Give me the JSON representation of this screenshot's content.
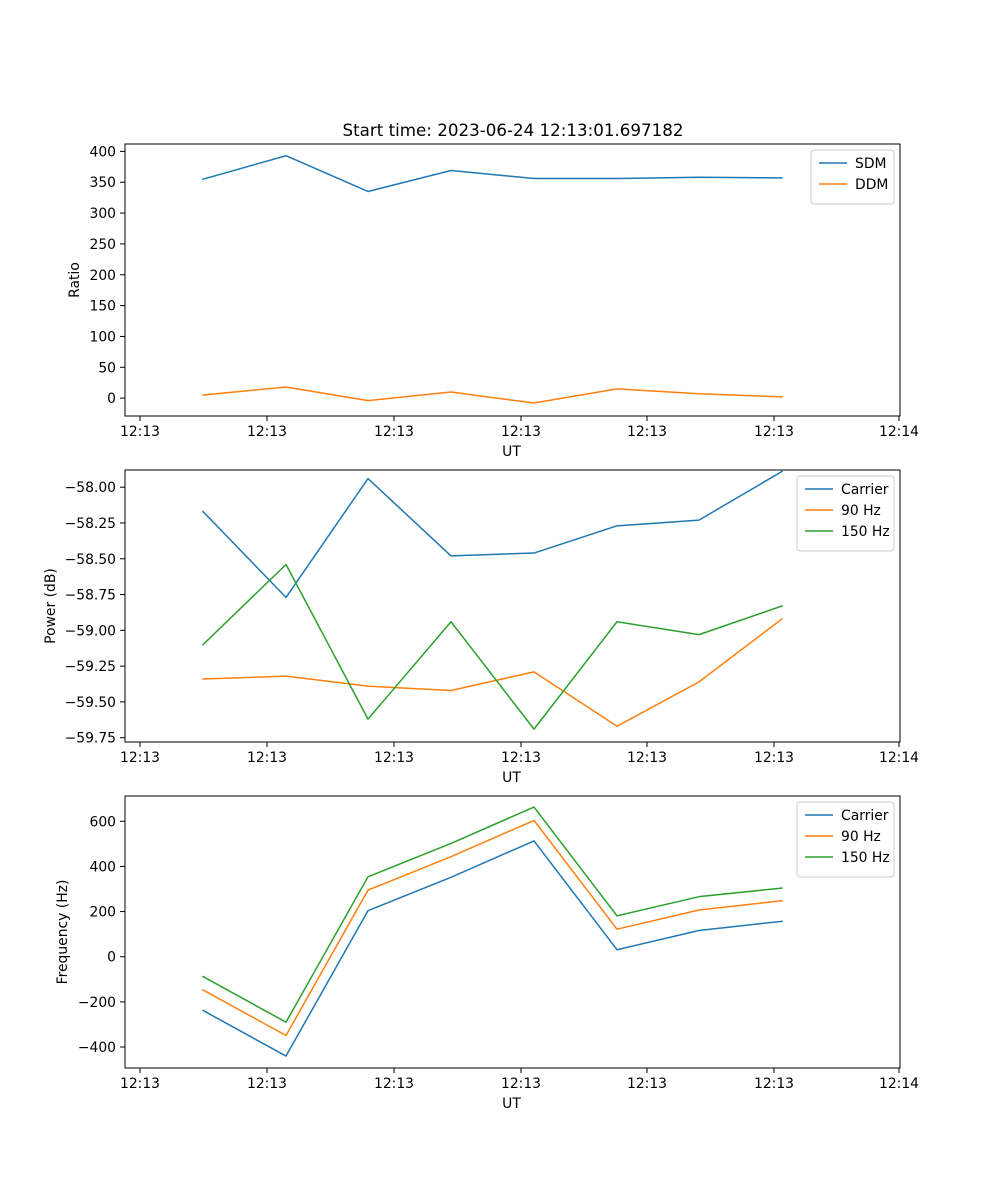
{
  "figure": {
    "title": "Start time: 2023-06-24 12:13:01.697182"
  },
  "colors": {
    "blue": "#1f77b4",
    "orange": "#ff7f0e",
    "green": "#2ca02c"
  },
  "chart_data": [
    {
      "type": "line",
      "title": "Start time: 2023-06-24 12:13:01.697182",
      "xlabel": "UT",
      "ylabel": "Ratio",
      "x_tick_labels": [
        "12:13",
        "12:13",
        "12:13",
        "12:13",
        "12:13",
        "12:13",
        "12:14"
      ],
      "y_ticks": [
        0,
        50,
        100,
        150,
        200,
        250,
        300,
        350,
        400
      ],
      "y_tick_labels": [
        "0",
        "50",
        "100",
        "150",
        "200",
        "250",
        "300",
        "350",
        "400"
      ],
      "ylim": [
        -29,
        412
      ],
      "legend_position": "top-right",
      "series": [
        {
          "name": "SDM",
          "color": "#1f77b4",
          "values": [
            355,
            393,
            335,
            369,
            356,
            356,
            358,
            357
          ]
        },
        {
          "name": "DDM",
          "color": "#ff7f0e",
          "values": [
            5,
            18,
            -4,
            10,
            -8,
            15,
            7,
            2
          ]
        }
      ]
    },
    {
      "type": "line",
      "title": "",
      "xlabel": "UT",
      "ylabel": "Power (dB)",
      "x_tick_labels": [
        "12:13",
        "12:13",
        "12:13",
        "12:13",
        "12:13",
        "12:13",
        "12:14"
      ],
      "y_ticks": [
        -58.0,
        -58.25,
        -58.5,
        -58.75,
        -59.0,
        -59.25,
        -59.5,
        -59.75
      ],
      "y_tick_labels": [
        "−58.00",
        "−58.25",
        "−58.50",
        "−58.75",
        "−59.00",
        "−59.25",
        "−59.50",
        "−59.75"
      ],
      "ylim": [
        -59.78,
        -57.88
      ],
      "legend_position": "top-right",
      "series": [
        {
          "name": "Carrier",
          "color": "#1f77b4",
          "values": [
            -58.17,
            -58.77,
            -57.94,
            -58.48,
            -58.46,
            -58.27,
            -58.23,
            -57.89
          ]
        },
        {
          "name": "90 Hz",
          "color": "#ff7f0e",
          "values": [
            -59.34,
            -59.32,
            -59.39,
            -59.42,
            -59.29,
            -59.67,
            -59.36,
            -58.92
          ]
        },
        {
          "name": "150 Hz",
          "color": "#2ca02c",
          "values": [
            -59.1,
            -58.54,
            -59.62,
            -58.94,
            -59.69,
            -58.94,
            -59.03,
            -58.83
          ]
        }
      ]
    },
    {
      "type": "line",
      "title": "",
      "xlabel": "UT",
      "ylabel": "Frequency (Hz)",
      "x_tick_labels": [
        "12:13",
        "12:13",
        "12:13",
        "12:13",
        "12:13",
        "12:13",
        "12:14"
      ],
      "y_ticks": [
        -400,
        -200,
        0,
        200,
        400,
        600
      ],
      "y_tick_labels": [
        "−400",
        "−200",
        "0",
        "200",
        "400",
        "600"
      ],
      "ylim": [
        -493,
        712
      ],
      "legend_position": "top-right",
      "series": [
        {
          "name": "Carrier",
          "color": "#1f77b4",
          "values": [
            -238,
            -440,
            204,
            352,
            513,
            31,
            116,
            157
          ]
        },
        {
          "name": "90 Hz",
          "color": "#ff7f0e",
          "values": [
            -147,
            -349,
            295,
            443,
            604,
            122,
            207,
            248
          ]
        },
        {
          "name": "150 Hz",
          "color": "#2ca02c",
          "values": [
            -88,
            -290,
            354,
            502,
            663,
            181,
            266,
            304
          ]
        }
      ]
    }
  ]
}
